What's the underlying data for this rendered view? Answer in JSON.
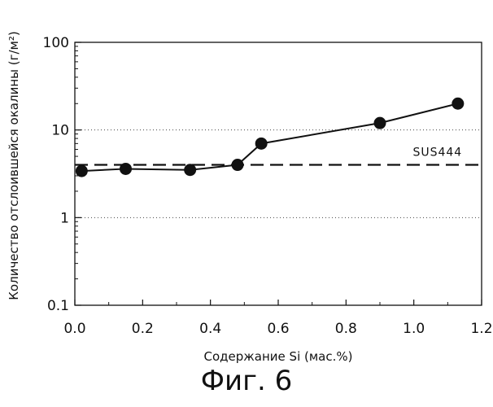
{
  "figure_caption": "Фиг. 6",
  "chart_data": {
    "type": "line",
    "xlabel": "Содержание Si (мас.%)",
    "ylabel": "Количество отслоившейся окалины (г/м²)",
    "xlim": [
      0.0,
      1.2
    ],
    "ylim": [
      0.1,
      100
    ],
    "yscale": "log",
    "x_ticks": [
      0.0,
      0.2,
      0.4,
      0.6,
      0.8,
      1.0,
      1.2
    ],
    "x_tick_labels": [
      "0.0",
      "0.2",
      "0.4",
      "0.6",
      "0.8",
      "1.0",
      "1.2"
    ],
    "y_ticks": [
      0.1,
      1,
      10,
      100
    ],
    "y_tick_labels": [
      "0.1",
      "1",
      "10",
      "100"
    ],
    "grid": "dotted horizontal at 1 and 10",
    "series": [
      {
        "x": [
          0.02,
          0.15,
          0.34,
          0.48,
          0.55,
          0.9,
          1.13
        ],
        "y": [
          3.4,
          3.6,
          3.5,
          4.0,
          7.0,
          12.0,
          20.0
        ]
      }
    ],
    "reference_line": {
      "label": "SUS444",
      "y": 4.0,
      "style": "dashed"
    }
  }
}
